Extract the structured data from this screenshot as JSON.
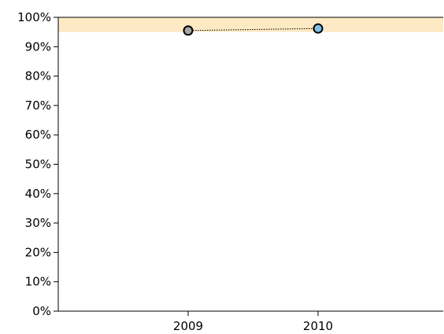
{
  "chart_data": {
    "type": "line",
    "x_categories": [
      "2009",
      "2010"
    ],
    "series": [
      {
        "values": [
          95.5,
          96.2
        ],
        "point_colors": [
          "#a6a6a6",
          "#7ec1e8"
        ],
        "line_style": "dotted"
      }
    ],
    "target_band": {
      "from": 95,
      "to": 100,
      "color": "#fde9c4"
    },
    "ylim": [
      0,
      100
    ],
    "y_ticks": [
      0,
      10,
      20,
      30,
      40,
      50,
      60,
      70,
      80,
      90,
      100
    ],
    "y_tick_suffix": "%",
    "grid": false,
    "legend": "none"
  }
}
